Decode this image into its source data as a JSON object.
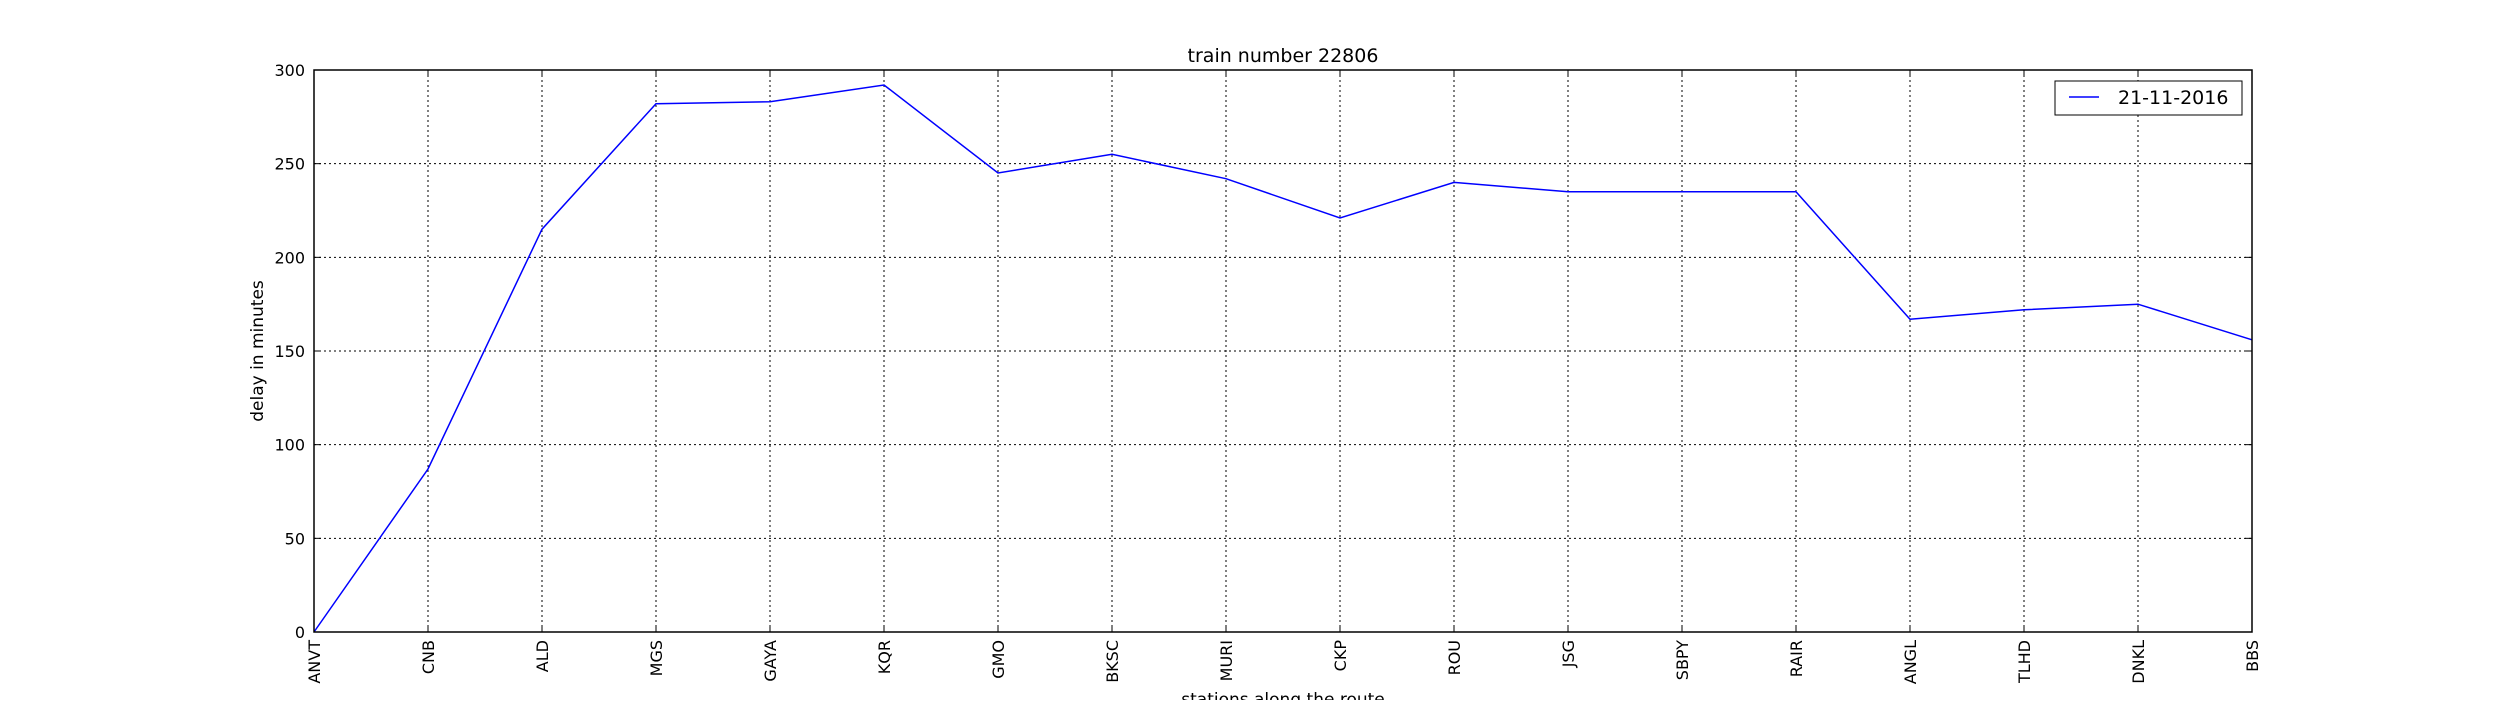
{
  "chart_data": {
    "type": "line",
    "title": "train number 22806",
    "xlabel": "stations along the route",
    "ylabel": "delay in minutes",
    "categories": [
      "ANVT",
      "CNB",
      "ALD",
      "MGS",
      "GAYA",
      "KQR",
      "GMO",
      "BKSC",
      "MURI",
      "CKP",
      "ROU",
      "JSG",
      "SBPY",
      "RAIR",
      "ANGL",
      "TLHD",
      "DNKL",
      "BBS"
    ],
    "series": [
      {
        "name": "21-11-2016",
        "color": "#0000ff",
        "values": [
          0,
          87,
          215,
          282,
          283,
          292,
          245,
          255,
          242,
          221,
          240,
          235,
          235,
          235,
          167,
          172,
          175,
          156
        ]
      }
    ],
    "ylim": [
      0,
      300
    ],
    "yticks": [
      0,
      50,
      100,
      150,
      200,
      250,
      300
    ],
    "grid": true,
    "legend_position": "top-right"
  }
}
